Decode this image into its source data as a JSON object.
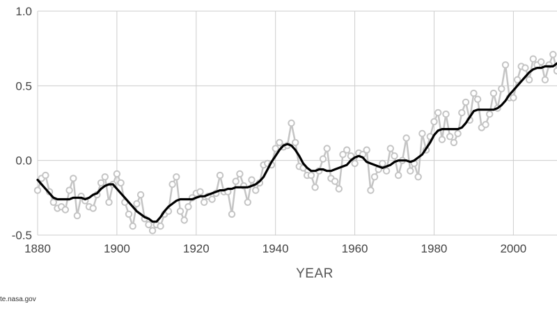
{
  "chart_data": {
    "type": "line",
    "xlabel": "YEAR",
    "ylabel": "",
    "xlim": [
      1880,
      2011
    ],
    "ylim": [
      -0.5,
      1.0
    ],
    "x_ticks": [
      1880,
      1900,
      1920,
      1940,
      1960,
      1980,
      2000
    ],
    "x_tick_labels": [
      "1880",
      "1900",
      "1920",
      "1940",
      "1960",
      "1980",
      "2000"
    ],
    "y_ticks": [
      -0.5,
      0.0,
      0.5,
      1.0
    ],
    "y_tick_labels": [
      "-0.5",
      "0.0",
      "0.5",
      "1.0"
    ],
    "grid": true,
    "colors": {
      "annual": "#c4c4c4",
      "smoothed": "#000000",
      "grid": "#cccccc"
    },
    "x": [
      1880,
      1881,
      1882,
      1883,
      1884,
      1885,
      1886,
      1887,
      1888,
      1889,
      1890,
      1891,
      1892,
      1893,
      1894,
      1895,
      1896,
      1897,
      1898,
      1899,
      1900,
      1901,
      1902,
      1903,
      1904,
      1905,
      1906,
      1907,
      1908,
      1909,
      1910,
      1911,
      1912,
      1913,
      1914,
      1915,
      1916,
      1917,
      1918,
      1919,
      1920,
      1921,
      1922,
      1923,
      1924,
      1925,
      1926,
      1927,
      1928,
      1929,
      1930,
      1931,
      1932,
      1933,
      1934,
      1935,
      1936,
      1937,
      1938,
      1939,
      1940,
      1941,
      1942,
      1943,
      1944,
      1945,
      1946,
      1947,
      1948,
      1949,
      1950,
      1951,
      1952,
      1953,
      1954,
      1955,
      1956,
      1957,
      1958,
      1959,
      1960,
      1961,
      1962,
      1963,
      1964,
      1965,
      1966,
      1967,
      1968,
      1969,
      1970,
      1971,
      1972,
      1973,
      1974,
      1975,
      1976,
      1977,
      1978,
      1979,
      1980,
      1981,
      1982,
      1983,
      1984,
      1985,
      1986,
      1987,
      1988,
      1989,
      1990,
      1991,
      1992,
      1993,
      1994,
      1995,
      1996,
      1997,
      1998,
      1999,
      2000,
      2001,
      2002,
      2003,
      2004,
      2005,
      2006,
      2007,
      2008,
      2009,
      2010,
      2011
    ],
    "series": [
      {
        "values": [
          -0.2,
          -0.12,
          -0.1,
          -0.21,
          -0.28,
          -0.32,
          -0.31,
          -0.33,
          -0.2,
          -0.12,
          -0.37,
          -0.24,
          -0.27,
          -0.31,
          -0.32,
          -0.23,
          -0.15,
          -0.11,
          -0.28,
          -0.16,
          -0.09,
          -0.15,
          -0.28,
          -0.36,
          -0.44,
          -0.29,
          -0.23,
          -0.39,
          -0.43,
          -0.47,
          -0.43,
          -0.44,
          -0.36,
          -0.34,
          -0.16,
          -0.11,
          -0.34,
          -0.4,
          -0.31,
          -0.25,
          -0.22,
          -0.21,
          -0.28,
          -0.24,
          -0.26,
          -0.22,
          -0.1,
          -0.21,
          -0.21,
          -0.36,
          -0.14,
          -0.09,
          -0.17,
          -0.28,
          -0.13,
          -0.2,
          -0.15,
          -0.03,
          -0.02,
          -0.03,
          0.08,
          0.12,
          0.09,
          0.1,
          0.25,
          0.12,
          -0.04,
          -0.05,
          -0.1,
          -0.1,
          -0.18,
          -0.07,
          0.01,
          0.08,
          -0.12,
          -0.14,
          -0.19,
          0.04,
          0.07,
          0.03,
          -0.02,
          0.05,
          0.04,
          0.07,
          -0.2,
          -0.11,
          -0.06,
          -0.02,
          -0.07,
          0.08,
          0.03,
          -0.1,
          0.0,
          0.15,
          -0.07,
          -0.02,
          -0.11,
          0.18,
          0.07,
          0.16,
          0.26,
          0.32,
          0.14,
          0.31,
          0.16,
          0.12,
          0.18,
          0.32,
          0.39,
          0.27,
          0.45,
          0.41,
          0.22,
          0.24,
          0.31,
          0.45,
          0.35,
          0.48,
          0.64,
          0.42,
          0.42,
          0.54,
          0.63,
          0.62,
          0.54,
          0.68,
          0.64,
          0.66,
          0.54,
          0.64,
          0.71,
          0.6
        ]
      },
      {
        "values": [
          -0.13,
          -0.16,
          -0.19,
          -0.22,
          -0.25,
          -0.26,
          -0.26,
          -0.26,
          -0.26,
          -0.25,
          -0.25,
          -0.25,
          -0.26,
          -0.25,
          -0.23,
          -0.22,
          -0.19,
          -0.17,
          -0.16,
          -0.16,
          -0.19,
          -0.22,
          -0.25,
          -0.28,
          -0.31,
          -0.34,
          -0.36,
          -0.38,
          -0.39,
          -0.41,
          -0.41,
          -0.38,
          -0.34,
          -0.31,
          -0.29,
          -0.27,
          -0.26,
          -0.26,
          -0.26,
          -0.26,
          -0.25,
          -0.24,
          -0.24,
          -0.23,
          -0.22,
          -0.21,
          -0.2,
          -0.2,
          -0.19,
          -0.19,
          -0.18,
          -0.18,
          -0.18,
          -0.18,
          -0.17,
          -0.16,
          -0.14,
          -0.11,
          -0.06,
          -0.01,
          0.03,
          0.07,
          0.1,
          0.11,
          0.1,
          0.07,
          0.03,
          -0.02,
          -0.05,
          -0.07,
          -0.07,
          -0.06,
          -0.06,
          -0.07,
          -0.07,
          -0.06,
          -0.05,
          -0.04,
          -0.03,
          0.0,
          0.02,
          0.03,
          0.02,
          -0.01,
          -0.02,
          -0.03,
          -0.04,
          -0.05,
          -0.04,
          -0.03,
          -0.01,
          0.0,
          0.0,
          0.0,
          -0.01,
          0.0,
          0.02,
          0.04,
          0.08,
          0.12,
          0.17,
          0.2,
          0.21,
          0.21,
          0.21,
          0.21,
          0.21,
          0.22,
          0.25,
          0.29,
          0.33,
          0.34,
          0.34,
          0.34,
          0.34,
          0.34,
          0.35,
          0.37,
          0.4,
          0.44,
          0.47,
          0.5,
          0.53,
          0.56,
          0.59,
          0.61,
          0.62,
          0.62,
          0.63,
          0.63,
          0.63,
          0.65
        ]
      }
    ]
  },
  "footer": {
    "source_text": "te.nasa.gov"
  }
}
